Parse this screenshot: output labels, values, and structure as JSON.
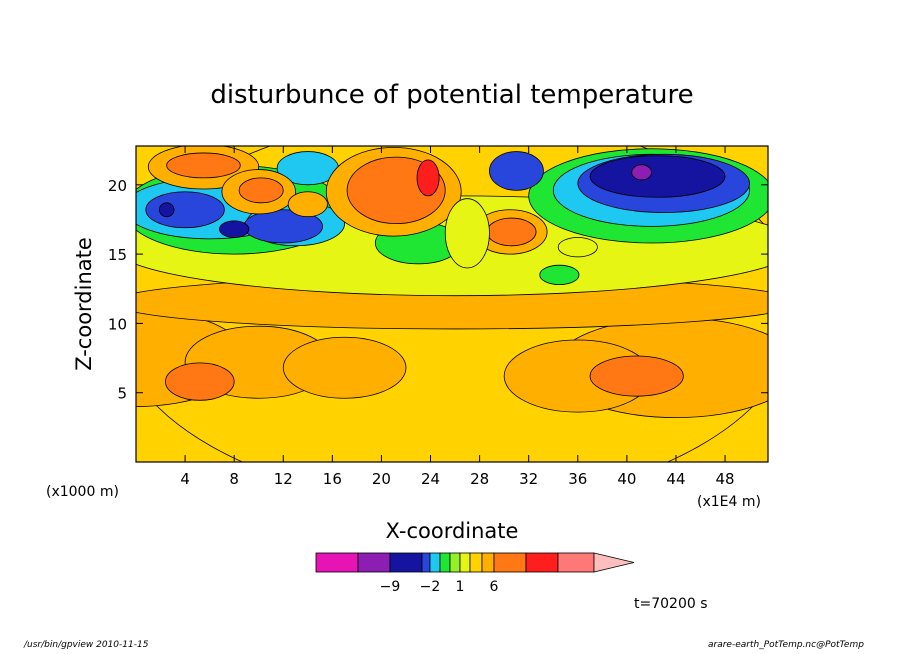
{
  "chart_data": {
    "type": "heatmap",
    "title": "disturbunce of potential temperature",
    "xlabel": "X-coordinate",
    "ylabel": "Z-coordinate",
    "x_unit_left": "(x1000 m)",
    "x_unit_right": "(x1E4 m)",
    "x_ticks": [
      4,
      8,
      12,
      16,
      20,
      24,
      28,
      32,
      36,
      40,
      44,
      48
    ],
    "y_ticks": [
      5,
      10,
      15,
      20
    ],
    "xlim": [
      0,
      51.5
    ],
    "ylim": [
      0,
      22.8
    ],
    "time_label": "t=70200 s",
    "colorbar": {
      "labels": [
        {
          "value": -9,
          "text": "−9"
        },
        {
          "value": -2,
          "text": "−2"
        },
        {
          "value": 1,
          "text": "1"
        },
        {
          "value": 6,
          "text": "6"
        }
      ],
      "colors": [
        "#e614b4",
        "#8c1eb4",
        "#1414a0",
        "#2846dc",
        "#1ec8f0",
        "#1ee632",
        "#96f028",
        "#e6f514",
        "#ffd200",
        "#ffaf00",
        "#ff7814",
        "#ff1e1e",
        "#ff7878",
        "#ffbebe"
      ]
    },
    "levels": [
      {
        "name": "base",
        "color": "#ffd200",
        "blobs": [
          [
            26,
            11,
            28,
            14
          ]
        ]
      },
      {
        "name": "light-orange-lower",
        "color": "#ffaf00",
        "blobs": [
          [
            0,
            7.5,
            9,
            3.5
          ],
          [
            10,
            7.2,
            6,
            2.6
          ],
          [
            17,
            6.8,
            5,
            2.2
          ],
          [
            44,
            6.8,
            10,
            3.6
          ],
          [
            36,
            6.2,
            6,
            2.6
          ]
        ]
      },
      {
        "name": "orange-lower",
        "color": "#ff7814",
        "blobs": [
          [
            5.2,
            5.8,
            2.8,
            1.35
          ],
          [
            40.8,
            6.2,
            3.8,
            1.45
          ]
        ]
      },
      {
        "name": "light-orange-upper",
        "color": "#ffaf00",
        "blobs": [
          [
            26,
            11.5,
            28,
            1.9
          ]
        ]
      },
      {
        "name": "yellow",
        "color": "#e6f514",
        "blobs": [
          [
            26,
            15.6,
            28,
            3.6
          ]
        ]
      },
      {
        "name": "green",
        "color": "#1ee632",
        "blobs": [
          [
            8,
            18.2,
            9,
            3.2
          ],
          [
            42,
            19.2,
            10,
            3.4
          ],
          [
            34.5,
            13.5,
            1.6,
            0.7
          ],
          [
            23,
            15.8,
            3.5,
            1.5
          ]
        ]
      },
      {
        "name": "cyan",
        "color": "#1ec8f0",
        "blobs": [
          [
            6,
            18.3,
            7,
            2.2
          ],
          [
            13,
            17.2,
            4,
            1.6
          ],
          [
            42,
            19.6,
            8,
            2.6
          ],
          [
            14,
            21.2,
            2.5,
            1.2
          ]
        ]
      },
      {
        "name": "blue",
        "color": "#2846dc",
        "blobs": [
          [
            4,
            18.2,
            3.2,
            1.3
          ],
          [
            12,
            17,
            3.2,
            1.2
          ],
          [
            43,
            20.1,
            7,
            2.1
          ],
          [
            31,
            21,
            2.2,
            1.4
          ]
        ]
      },
      {
        "name": "dark-blue",
        "color": "#1414a0",
        "blobs": [
          [
            42.5,
            20.6,
            5.5,
            1.5
          ],
          [
            8,
            16.8,
            1.2,
            0.6
          ],
          [
            2.5,
            18.2,
            0.6,
            0.5
          ]
        ]
      },
      {
        "name": "purple",
        "color": "#8c1eb4",
        "blobs": [
          [
            41.2,
            20.9,
            0.8,
            0.55
          ]
        ]
      },
      {
        "name": "light-orange-top",
        "color": "#ffaf00",
        "blobs": [
          [
            5.5,
            21.3,
            4.5,
            1.6
          ],
          [
            10,
            19.5,
            3,
            1.6
          ],
          [
            21,
            19.5,
            5.5,
            3.2
          ],
          [
            30.5,
            16.6,
            3,
            1.6
          ],
          [
            14,
            18.6,
            1.6,
            0.9
          ]
        ]
      },
      {
        "name": "orange-top",
        "color": "#ff7814",
        "blobs": [
          [
            5.5,
            21.4,
            3,
            0.9
          ],
          [
            10.2,
            19.6,
            1.8,
            0.9
          ],
          [
            21.2,
            19.6,
            4,
            2.4
          ],
          [
            30.6,
            16.6,
            2,
            1
          ]
        ]
      },
      {
        "name": "red-top",
        "color": "#ff1e1e",
        "blobs": [
          [
            23.8,
            20.5,
            0.9,
            1.3
          ]
        ]
      },
      {
        "name": "yellow-top",
        "color": "#e6f514",
        "blobs": [
          [
            27,
            16.5,
            1.8,
            2.5
          ],
          [
            36,
            15.5,
            1.6,
            0.7
          ]
        ]
      }
    ]
  },
  "footer": {
    "left": "/usr/bin/gpview  2010-11-15",
    "right": "arare-earth_PotTemp.nc@PotTemp"
  }
}
